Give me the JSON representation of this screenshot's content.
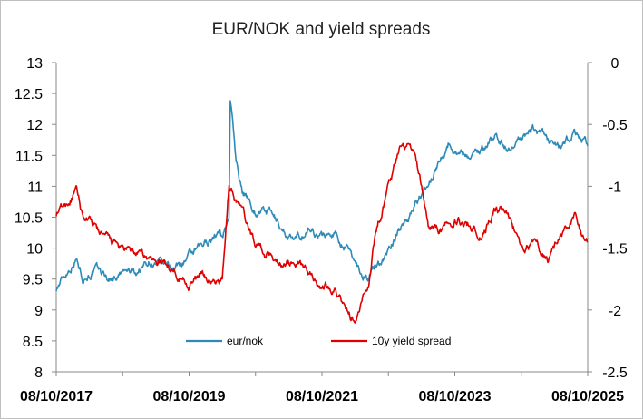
{
  "chart_data": {
    "type": "line",
    "title": "EUR/NOK and yield spreads",
    "x_tick_labels": [
      "08/10/2017",
      "08/10/2019",
      "08/10/2021",
      "08/10/2023",
      "08/10/2025"
    ],
    "x_range_years": [
      2017.6,
      2025.6
    ],
    "y_left": {
      "ticks": [
        "13",
        "12.5",
        "12",
        "11.5",
        "11",
        "10.5",
        "10",
        "9.5",
        "9",
        "8.5",
        "8"
      ],
      "range": [
        8,
        13
      ]
    },
    "y_right": {
      "ticks": [
        "0",
        "-0.5",
        "-1",
        "-1.5",
        "-2",
        "-2.5"
      ],
      "range": [
        -2.5,
        0
      ]
    },
    "legend_position": "bottom-center",
    "series": [
      {
        "name": "eur/nok",
        "axis": "left",
        "color": "#2e8bb8",
        "x": [
          2017.6,
          2017.75,
          2017.9,
          2018.0,
          2018.2,
          2018.4,
          2018.6,
          2018.8,
          2019.0,
          2019.2,
          2019.4,
          2019.6,
          2019.8,
          2020.0,
          2020.1,
          2020.2,
          2020.22,
          2020.3,
          2020.4,
          2020.5,
          2020.6,
          2020.8,
          2021.0,
          2021.2,
          2021.4,
          2021.6,
          2021.8,
          2022.0,
          2022.1,
          2022.2,
          2022.3,
          2022.4,
          2022.6,
          2022.8,
          2023.0,
          2023.2,
          2023.4,
          2023.5,
          2023.6,
          2023.8,
          2024.0,
          2024.2,
          2024.4,
          2024.6,
          2024.8,
          2025.0,
          2025.2,
          2025.4,
          2025.6
        ],
        "values": [
          9.35,
          9.6,
          9.85,
          9.55,
          9.65,
          9.5,
          9.6,
          9.6,
          9.8,
          9.7,
          9.7,
          9.85,
          10.0,
          10.25,
          10.2,
          10.5,
          12.45,
          11.5,
          10.9,
          10.8,
          10.6,
          10.6,
          10.3,
          10.1,
          10.3,
          10.2,
          10.25,
          9.95,
          9.8,
          9.6,
          9.55,
          9.7,
          9.95,
          10.35,
          10.7,
          11.0,
          11.5,
          11.7,
          11.6,
          11.5,
          11.6,
          11.8,
          11.6,
          11.8,
          11.9,
          11.75,
          11.6,
          11.9,
          11.65
        ]
      },
      {
        "name": "10y yield spread",
        "axis": "right",
        "color": "#e00000",
        "x": [
          2017.6,
          2017.75,
          2017.9,
          2018.0,
          2018.2,
          2018.4,
          2018.6,
          2018.8,
          2019.0,
          2019.2,
          2019.4,
          2019.6,
          2019.8,
          2020.0,
          2020.1,
          2020.2,
          2020.3,
          2020.4,
          2020.5,
          2020.6,
          2020.8,
          2021.0,
          2021.2,
          2021.4,
          2021.6,
          2021.8,
          2022.0,
          2022.1,
          2022.2,
          2022.3,
          2022.4,
          2022.6,
          2022.8,
          2023.0,
          2023.2,
          2023.4,
          2023.5,
          2023.6,
          2023.8,
          2024.0,
          2024.2,
          2024.4,
          2024.6,
          2024.8,
          2025.0,
          2025.2,
          2025.4,
          2025.6
        ],
        "values": [
          -1.22,
          -1.15,
          -1.05,
          -1.25,
          -1.35,
          -1.45,
          -1.52,
          -1.55,
          -1.6,
          -1.62,
          -1.68,
          -1.78,
          -1.72,
          -1.8,
          -1.75,
          -1.0,
          -1.1,
          -1.2,
          -1.35,
          -1.45,
          -1.55,
          -1.62,
          -1.6,
          -1.7,
          -1.8,
          -1.82,
          -2.05,
          -2.1,
          -1.95,
          -1.8,
          -1.4,
          -1.0,
          -0.65,
          -0.7,
          -1.3,
          -1.35,
          -1.3,
          -1.25,
          -1.3,
          -1.4,
          -1.2,
          -1.2,
          -1.5,
          -1.45,
          -1.6,
          -1.4,
          -1.25,
          -1.45
        ]
      }
    ]
  }
}
